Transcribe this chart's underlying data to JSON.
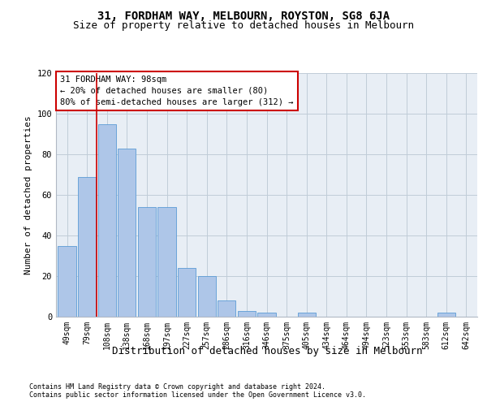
{
  "title": "31, FORDHAM WAY, MELBOURN, ROYSTON, SG8 6JA",
  "subtitle": "Size of property relative to detached houses in Melbourn",
  "xlabel": "Distribution of detached houses by size in Melbourn",
  "ylabel": "Number of detached properties",
  "categories": [
    "49sqm",
    "79sqm",
    "108sqm",
    "138sqm",
    "168sqm",
    "197sqm",
    "227sqm",
    "257sqm",
    "286sqm",
    "316sqm",
    "346sqm",
    "375sqm",
    "405sqm",
    "434sqm",
    "464sqm",
    "494sqm",
    "523sqm",
    "553sqm",
    "583sqm",
    "612sqm",
    "642sqm"
  ],
  "values": [
    35,
    69,
    95,
    83,
    54,
    54,
    24,
    20,
    8,
    3,
    2,
    0,
    2,
    0,
    0,
    0,
    0,
    0,
    0,
    2,
    0
  ],
  "bar_color": "#aec6e8",
  "bar_edge_color": "#5b9bd5",
  "vline_x": 1.5,
  "vline_color": "#cc0000",
  "annotation_text": "31 FORDHAM WAY: 98sqm\n← 20% of detached houses are smaller (80)\n80% of semi-detached houses are larger (312) →",
  "annotation_box_edge": "#cc0000",
  "ylim": [
    0,
    120
  ],
  "yticks": [
    0,
    20,
    40,
    60,
    80,
    100,
    120
  ],
  "grid_color": "#c0ccd8",
  "bg_color": "#e8eef5",
  "footer1": "Contains HM Land Registry data © Crown copyright and database right 2024.",
  "footer2": "Contains public sector information licensed under the Open Government Licence v3.0.",
  "title_fontsize": 10,
  "subtitle_fontsize": 9,
  "tick_fontsize": 7,
  "ylabel_fontsize": 8,
  "xlabel_fontsize": 9,
  "annotation_fontsize": 7.5,
  "footer_fontsize": 6
}
